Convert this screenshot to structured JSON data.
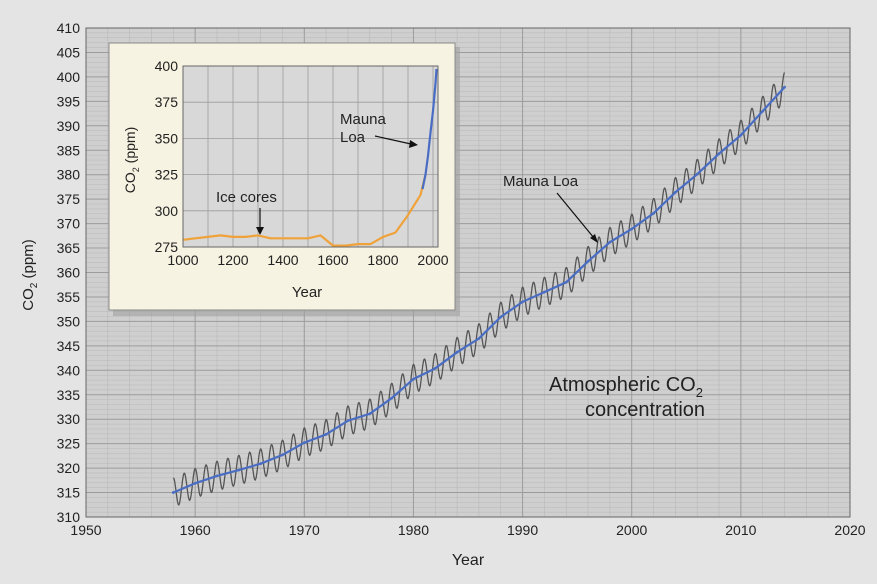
{
  "chart_data": [
    {
      "type": "line",
      "title": "Atmospheric CO2 concentration",
      "annotation_line1": "Atmospheric CO",
      "annotation_sub": "2",
      "annotation_line2": "concentration",
      "xlabel": "Year",
      "ylabel_main": "CO",
      "ylabel_sub": "2",
      "ylabel_unit": " (ppm)",
      "xlim": [
        1950,
        2020
      ],
      "ylim": [
        310,
        410
      ],
      "x_ticks": [
        "1950",
        "1960",
        "1970",
        "1980",
        "1990",
        "2000",
        "2010",
        "2020"
      ],
      "y_ticks": [
        "310",
        "315",
        "320",
        "325",
        "330",
        "335",
        "340",
        "345",
        "350",
        "355",
        "360",
        "365",
        "370",
        "375",
        "380",
        "385",
        "390",
        "395",
        "400",
        "405",
        "410"
      ],
      "grid": true,
      "series": [
        {
          "name": "Mauna Loa",
          "label": "Mauna Loa",
          "description": "annual trend",
          "x": [
            1958,
            1960,
            1962,
            1964,
            1966,
            1968,
            1970,
            1972,
            1974,
            1976,
            1978,
            1980,
            1982,
            1984,
            1986,
            1988,
            1990,
            1992,
            1994,
            1996,
            1998,
            2000,
            2002,
            2004,
            2006,
            2008,
            2010,
            2012,
            2014
          ],
          "values": [
            315.0,
            316.9,
            318.4,
            319.6,
            320.9,
            322.7,
            325.2,
            326.9,
            329.7,
            331.1,
            334.3,
            338.2,
            340.4,
            343.7,
            346.5,
            350.9,
            354.0,
            356.0,
            358.0,
            362.3,
            366.2,
            368.9,
            372.1,
            376.4,
            380.1,
            384.3,
            388.1,
            393.0,
            397.9
          ],
          "seasonal_amplitude_ppm": 3
        }
      ]
    },
    {
      "type": "line",
      "xlabel": "Year",
      "ylabel_main": "CO",
      "ylabel_sub": "2",
      "ylabel_unit": " (ppm)",
      "xlim": [
        1000,
        2020
      ],
      "ylim": [
        275,
        400
      ],
      "x_ticks": [
        "1000",
        "1200",
        "1400",
        "1600",
        "1800",
        "2000"
      ],
      "y_ticks": [
        "275",
        "300",
        "325",
        "350",
        "375",
        "400"
      ],
      "grid": true,
      "series": [
        {
          "name": "Ice cores",
          "label": "Ice cores",
          "color": "#f0a23a",
          "x": [
            1000,
            1050,
            1100,
            1150,
            1200,
            1250,
            1300,
            1350,
            1400,
            1450,
            1500,
            1550,
            1600,
            1650,
            1700,
            1750,
            1800,
            1850,
            1900,
            1950,
            1970
          ],
          "values": [
            280,
            281,
            282,
            283,
            282,
            282,
            283,
            281,
            281,
            281,
            281,
            283,
            276,
            276,
            277,
            277,
            282,
            285,
            297,
            311,
            325
          ]
        },
        {
          "name": "Mauna Loa",
          "label_line1": "Mauna",
          "label_line2": "Loa",
          "color": "#4a6dc4",
          "x": [
            1958,
            1970,
            1980,
            1990,
            2000,
            2010,
            2014
          ],
          "values": [
            315,
            325,
            338,
            354,
            369,
            388,
            398
          ]
        }
      ]
    }
  ],
  "colors": {
    "background": "#e4e4e4",
    "plot_background": "#cfcfcf",
    "grid_major": "#9c9c9c",
    "grid_minor": "#b8b8b8",
    "trend": "#4a6dc4",
    "monthly": "#555555",
    "inset_background": "#d8d8d8",
    "inset_panel": "#f7f3e2"
  }
}
